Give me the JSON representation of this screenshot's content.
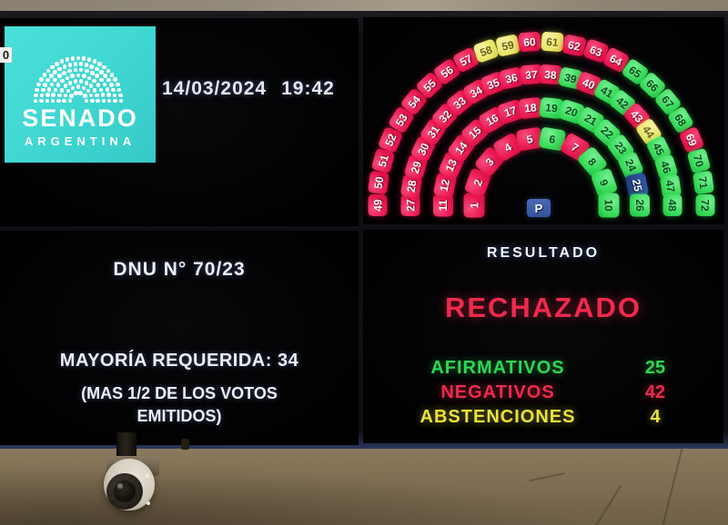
{
  "top_left_screen": {
    "corner_badge": "0",
    "logo": {
      "title": "SENADO",
      "subtitle": "ARGENTINA",
      "background_color": "#3fd6d2"
    },
    "date": "14/03/2024",
    "time": "19:42"
  },
  "hemicycle": {
    "president_label": "P",
    "vote_colors": {
      "affirmative": "#35da57",
      "negative": "#e8164e",
      "abstention": "#e9e566",
      "president": "#2a4d9c"
    },
    "rings": [
      {
        "seats": [
          {
            "num": 1,
            "vote": "negative"
          },
          {
            "num": 2,
            "vote": "negative"
          },
          {
            "num": 3,
            "vote": "negative"
          },
          {
            "num": 4,
            "vote": "negative"
          },
          {
            "num": 5,
            "vote": "negative"
          },
          {
            "num": 6,
            "vote": "affirmative"
          },
          {
            "num": 7,
            "vote": "negative"
          },
          {
            "num": 8,
            "vote": "affirmative"
          },
          {
            "num": 9,
            "vote": "affirmative"
          },
          {
            "num": 10,
            "vote": "affirmative"
          }
        ]
      },
      {
        "seats": [
          {
            "num": 11,
            "vote": "negative"
          },
          {
            "num": 12,
            "vote": "negative"
          },
          {
            "num": 13,
            "vote": "negative"
          },
          {
            "num": 14,
            "vote": "negative"
          },
          {
            "num": 15,
            "vote": "negative"
          },
          {
            "num": 16,
            "vote": "negative"
          },
          {
            "num": 17,
            "vote": "negative"
          },
          {
            "num": 18,
            "vote": "negative"
          },
          {
            "num": 19,
            "vote": "affirmative"
          },
          {
            "num": 20,
            "vote": "affirmative"
          },
          {
            "num": 21,
            "vote": "affirmative"
          },
          {
            "num": 22,
            "vote": "affirmative"
          },
          {
            "num": 23,
            "vote": "affirmative"
          },
          {
            "num": 24,
            "vote": "affirmative"
          },
          {
            "num": 25,
            "vote": "president"
          },
          {
            "num": 26,
            "vote": "affirmative"
          }
        ]
      },
      {
        "seats": [
          {
            "num": 27,
            "vote": "negative"
          },
          {
            "num": 28,
            "vote": "negative"
          },
          {
            "num": 29,
            "vote": "negative"
          },
          {
            "num": 30,
            "vote": "negative"
          },
          {
            "num": 31,
            "vote": "negative"
          },
          {
            "num": 32,
            "vote": "negative"
          },
          {
            "num": 33,
            "vote": "negative"
          },
          {
            "num": 34,
            "vote": "negative"
          },
          {
            "num": 35,
            "vote": "negative"
          },
          {
            "num": 36,
            "vote": "negative"
          },
          {
            "num": 37,
            "vote": "negative"
          },
          {
            "num": 38,
            "vote": "negative"
          },
          {
            "num": 39,
            "vote": "affirmative"
          },
          {
            "num": 40,
            "vote": "negative"
          },
          {
            "num": 41,
            "vote": "affirmative"
          },
          {
            "num": 42,
            "vote": "affirmative"
          },
          {
            "num": 43,
            "vote": "negative"
          },
          {
            "num": 44,
            "vote": "abstention"
          },
          {
            "num": 45,
            "vote": "affirmative"
          },
          {
            "num": 46,
            "vote": "affirmative"
          },
          {
            "num": 47,
            "vote": "affirmative"
          },
          {
            "num": 48,
            "vote": "affirmative"
          }
        ]
      },
      {
        "seats": [
          {
            "num": 49,
            "vote": "negative"
          },
          {
            "num": 50,
            "vote": "negative"
          },
          {
            "num": 51,
            "vote": "negative"
          },
          {
            "num": 52,
            "vote": "negative"
          },
          {
            "num": 53,
            "vote": "negative"
          },
          {
            "num": 54,
            "vote": "negative"
          },
          {
            "num": 55,
            "vote": "negative"
          },
          {
            "num": 56,
            "vote": "negative"
          },
          {
            "num": 57,
            "vote": "negative"
          },
          {
            "num": 58,
            "vote": "abstention"
          },
          {
            "num": 59,
            "vote": "abstention"
          },
          {
            "num": 60,
            "vote": "negative"
          },
          {
            "num": 61,
            "vote": "abstention"
          },
          {
            "num": 62,
            "vote": "negative"
          },
          {
            "num": 63,
            "vote": "negative"
          },
          {
            "num": 64,
            "vote": "negative"
          },
          {
            "num": 65,
            "vote": "affirmative"
          },
          {
            "num": 66,
            "vote": "affirmative"
          },
          {
            "num": 67,
            "vote": "affirmative"
          },
          {
            "num": 68,
            "vote": "affirmative"
          },
          {
            "num": 69,
            "vote": "negative"
          },
          {
            "num": 70,
            "vote": "affirmative"
          },
          {
            "num": 71,
            "vote": "affirmative"
          },
          {
            "num": 72,
            "vote": "affirmative"
          }
        ]
      }
    ]
  },
  "bottom_left_screen": {
    "measure_title": "DNU N° 70/23",
    "majority_line": "MAYORÍA REQUERIDA: 34",
    "majority_note_line1": "(MAS 1/2 DE LOS VOTOS",
    "majority_note_line2": "EMITIDOS)"
  },
  "bottom_right_screen": {
    "title": "RESULTADO",
    "verdict": "RECHAZADO",
    "rows": [
      {
        "label": "AFIRMATIVOS",
        "value": "25",
        "status": "affirmative"
      },
      {
        "label": "NEGATIVOS",
        "value": "42",
        "status": "negative"
      },
      {
        "label": "ABSTENCIONES",
        "value": "4",
        "status": "abstention"
      }
    ]
  }
}
